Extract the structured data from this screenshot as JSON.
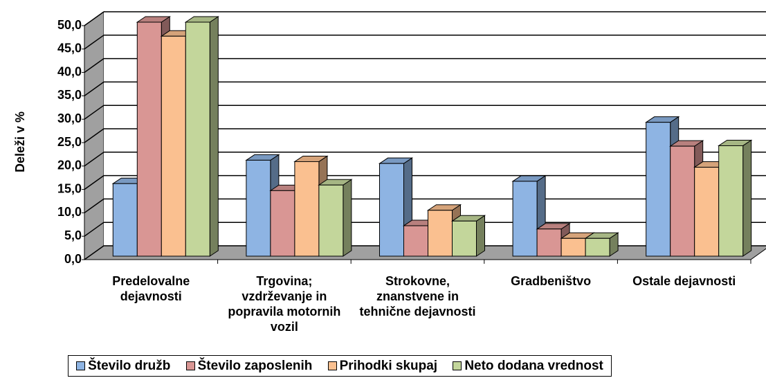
{
  "chart_data": {
    "type": "bar3d",
    "y_label": "Deleži v %",
    "categories": [
      "Predelovalne dejavnosti",
      "Trgovina; vzdrževanje in popravila motornih vozil",
      "Strokovne, znanstvene in tehnične dejavnosti",
      "Gradbeništvo",
      "Ostale dejavnosti"
    ],
    "series": [
      {
        "name": "Število družb",
        "color": "#8eb4e3",
        "values": [
          15.5,
          20.5,
          19.8,
          16.0,
          28.6
        ]
      },
      {
        "name": "Število zaposlenih",
        "color": "#d99694",
        "values": [
          50.0,
          14.0,
          6.5,
          5.8,
          23.5
        ]
      },
      {
        "name": "Prihodki skupaj",
        "color": "#fac090",
        "values": [
          47.0,
          20.2,
          9.8,
          3.8,
          19.0
        ]
      },
      {
        "name": "Neto dodana vrednost",
        "color": "#c3d69b",
        "values": [
          50.0,
          15.2,
          7.5,
          3.8,
          23.6
        ]
      }
    ],
    "ylim": [
      0,
      50
    ],
    "yticks": [
      {
        "value": 0,
        "label": "0,0"
      },
      {
        "value": 5,
        "label": "5,0"
      },
      {
        "value": 10,
        "label": "10,0"
      },
      {
        "value": 15,
        "label": "15,0"
      },
      {
        "value": 20,
        "label": "20,0"
      },
      {
        "value": 25,
        "label": "25,0"
      },
      {
        "value": 30,
        "label": "30,0"
      },
      {
        "value": 35,
        "label": "35,0"
      },
      {
        "value": 40,
        "label": "40,0"
      },
      {
        "value": 45,
        "label": "45,0"
      },
      {
        "value": 50,
        "label": "50,0"
      }
    ],
    "grid": true
  }
}
